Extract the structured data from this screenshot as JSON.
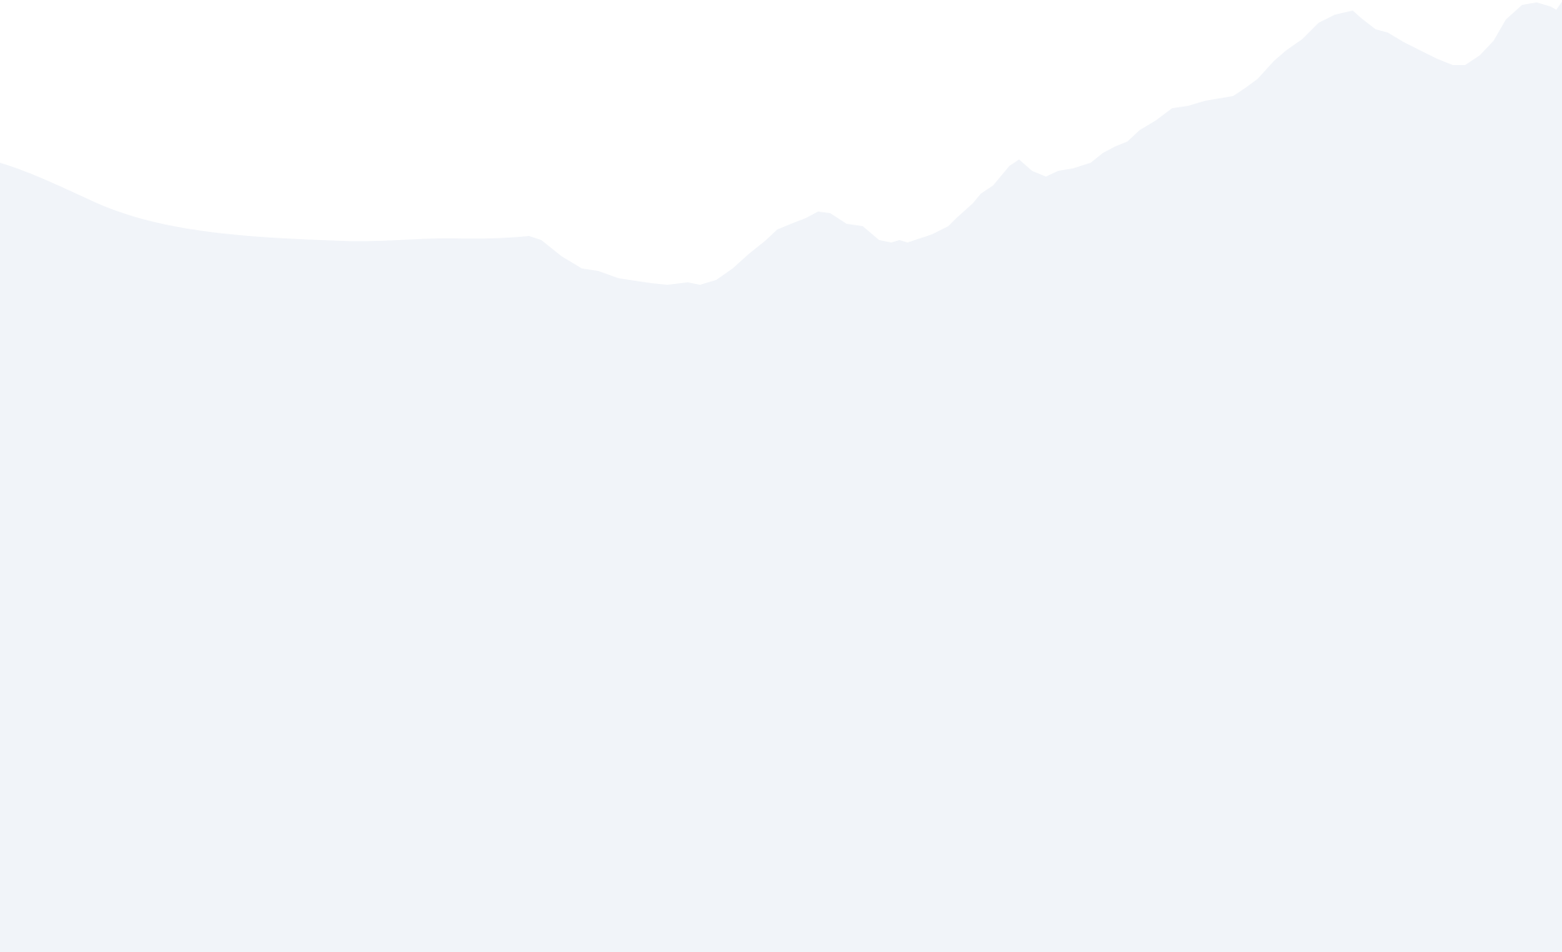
{
  "colors": {
    "background": "#ffffff",
    "terrain_fill": "#f1f4f9"
  },
  "elements": {
    "terrain_shape": "decorative mountain silhouette"
  }
}
